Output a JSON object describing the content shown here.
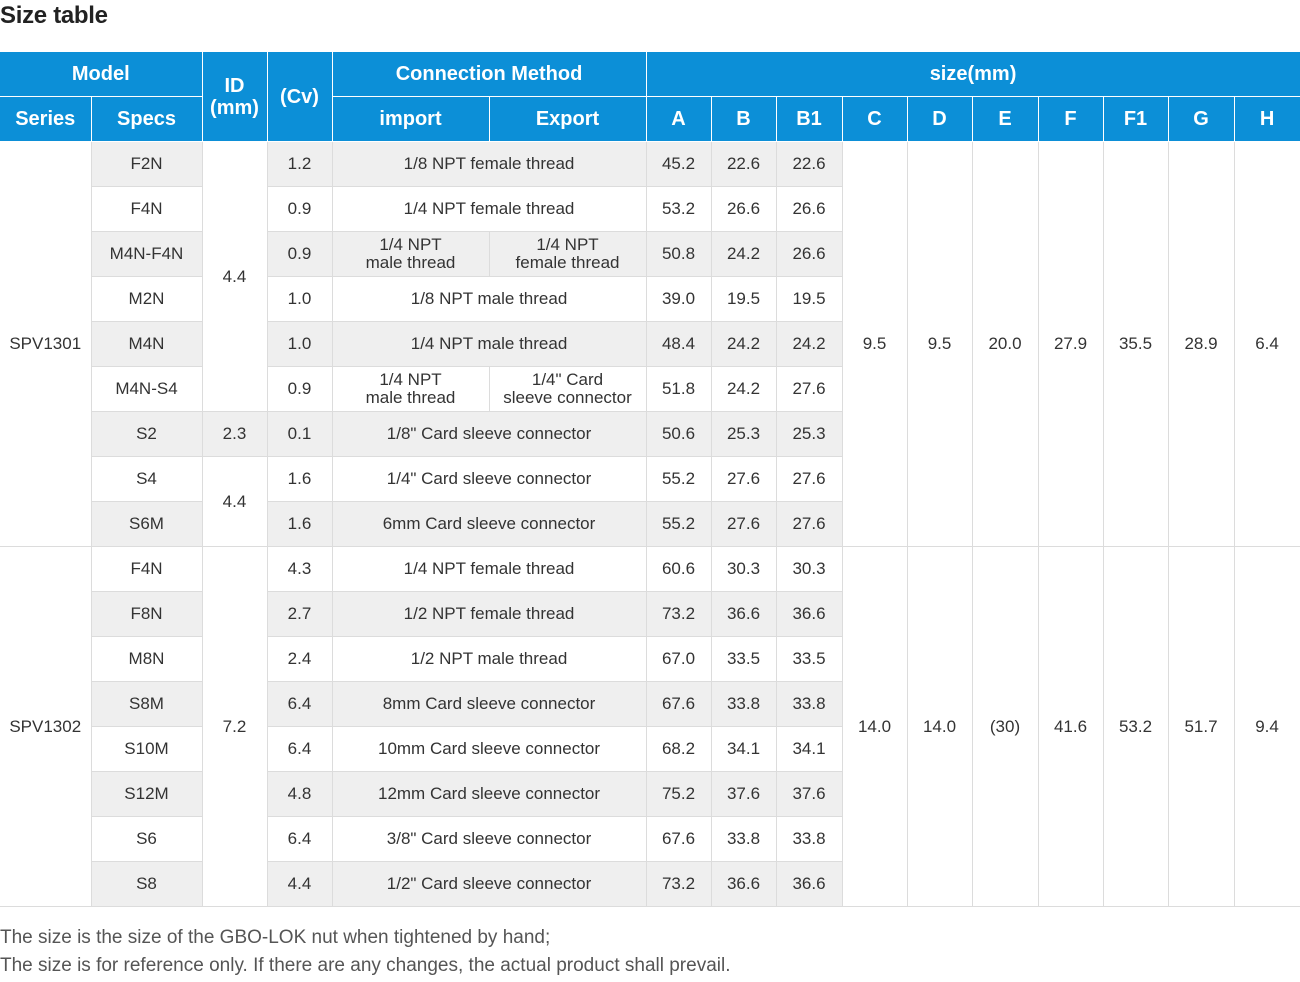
{
  "title": "Size table",
  "header": {
    "model": "Model",
    "id": "ID",
    "id_unit": "(mm)",
    "cv": "(Cv)",
    "connection": "Connection Method",
    "size": "size(mm)",
    "series": "Series",
    "specs": "Specs",
    "import": "import",
    "export": "Export",
    "dims": [
      "A",
      "B",
      "B1",
      "C",
      "D",
      "E",
      "F",
      "F1",
      "G",
      "H"
    ]
  },
  "groups": [
    {
      "series": "SPV1301",
      "C": "9.5",
      "D": "9.5",
      "E": "20.0",
      "F": "27.9",
      "F1": "35.5",
      "G": "28.9",
      "H": "6.4",
      "rows": [
        {
          "spec": "F2N",
          "cv": "1.2",
          "conn": "1/8 NPT female thread",
          "A": "45.2",
          "B": "22.6",
          "B1": "22.6"
        },
        {
          "spec": "F4N",
          "cv": "0.9",
          "conn": "1/4 NPT female thread",
          "A": "53.2",
          "B": "26.6",
          "B1": "26.6"
        },
        {
          "spec": "M4N-F4N",
          "cv": "0.9",
          "import_l1": "1/4 NPT",
          "import_l2": "male thread",
          "export_l1": "1/4 NPT",
          "export_l2": "female thread",
          "A": "50.8",
          "B": "24.2",
          "B1": "26.6"
        },
        {
          "spec": "M2N",
          "cv": "1.0",
          "conn": "1/8 NPT male thread",
          "A": "39.0",
          "B": "19.5",
          "B1": "19.5"
        },
        {
          "spec": "M4N",
          "cv": "1.0",
          "conn": "1/4 NPT male thread",
          "A": "48.4",
          "B": "24.2",
          "B1": "24.2"
        },
        {
          "spec": "M4N-S4",
          "cv": "0.9",
          "import_l1": "1/4 NPT",
          "import_l2": "male thread",
          "export_l1": "1/4\" Card",
          "export_l2": "sleeve connector",
          "A": "51.8",
          "B": "24.2",
          "B1": "27.6"
        },
        {
          "spec": "S2",
          "cv": "0.1",
          "conn": "1/8\" Card sleeve connector",
          "A": "50.6",
          "B": "25.3",
          "B1": "25.3"
        },
        {
          "spec": "S4",
          "cv": "1.6",
          "conn": "1/4\" Card sleeve connector",
          "A": "55.2",
          "B": "27.6",
          "B1": "27.6"
        },
        {
          "spec": "S6M",
          "cv": "1.6",
          "conn": "6mm  Card sleeve connector",
          "A": "55.2",
          "B": "27.6",
          "B1": "27.6"
        }
      ],
      "ids": [
        "4.4",
        "2.3",
        "4.4"
      ]
    },
    {
      "series": "SPV1302",
      "C": "14.0",
      "D": "14.0",
      "E": "(30)",
      "F": "41.6",
      "F1": "53.2",
      "G": "51.7",
      "H": "9.4",
      "id": "7.2",
      "rows": [
        {
          "spec": "F4N",
          "cv": "4.3",
          "conn": "1/4 NPT female thread",
          "A": "60.6",
          "B": "30.3",
          "B1": "30.3"
        },
        {
          "spec": "F8N",
          "cv": "2.7",
          "conn": "1/2 NPT female thread",
          "A": "73.2",
          "B": "36.6",
          "B1": "36.6"
        },
        {
          "spec": "M8N",
          "cv": "2.4",
          "conn": "1/2 NPT male thread",
          "A": "67.0",
          "B": "33.5",
          "B1": "33.5"
        },
        {
          "spec": "S8M",
          "cv": "6.4",
          "conn": "8mm  Card sleeve connector",
          "A": "67.6",
          "B": "33.8",
          "B1": "33.8"
        },
        {
          "spec": "S10M",
          "cv": "6.4",
          "conn": "10mm  Card sleeve connector",
          "A": "68.2",
          "B": "34.1",
          "B1": "34.1"
        },
        {
          "spec": "S12M",
          "cv": "4.8",
          "conn": "12mm  Card sleeve connector",
          "A": "75.2",
          "B": "37.6",
          "B1": "37.6"
        },
        {
          "spec": "S6",
          "cv": "6.4",
          "conn": "3/8\"  Card sleeve connector",
          "A": "67.6",
          "B": "33.8",
          "B1": "33.8"
        },
        {
          "spec": "S8",
          "cv": "4.4",
          "conn": "1/2\"  Card sleeve connector",
          "A": "73.2",
          "B": "36.6",
          "B1": "36.6"
        }
      ]
    }
  ],
  "notes": [
    "The size is the size of the GBO-LOK nut when tightened by hand;",
    "The size is for reference only. If there are any changes, the actual product shall prevail."
  ]
}
